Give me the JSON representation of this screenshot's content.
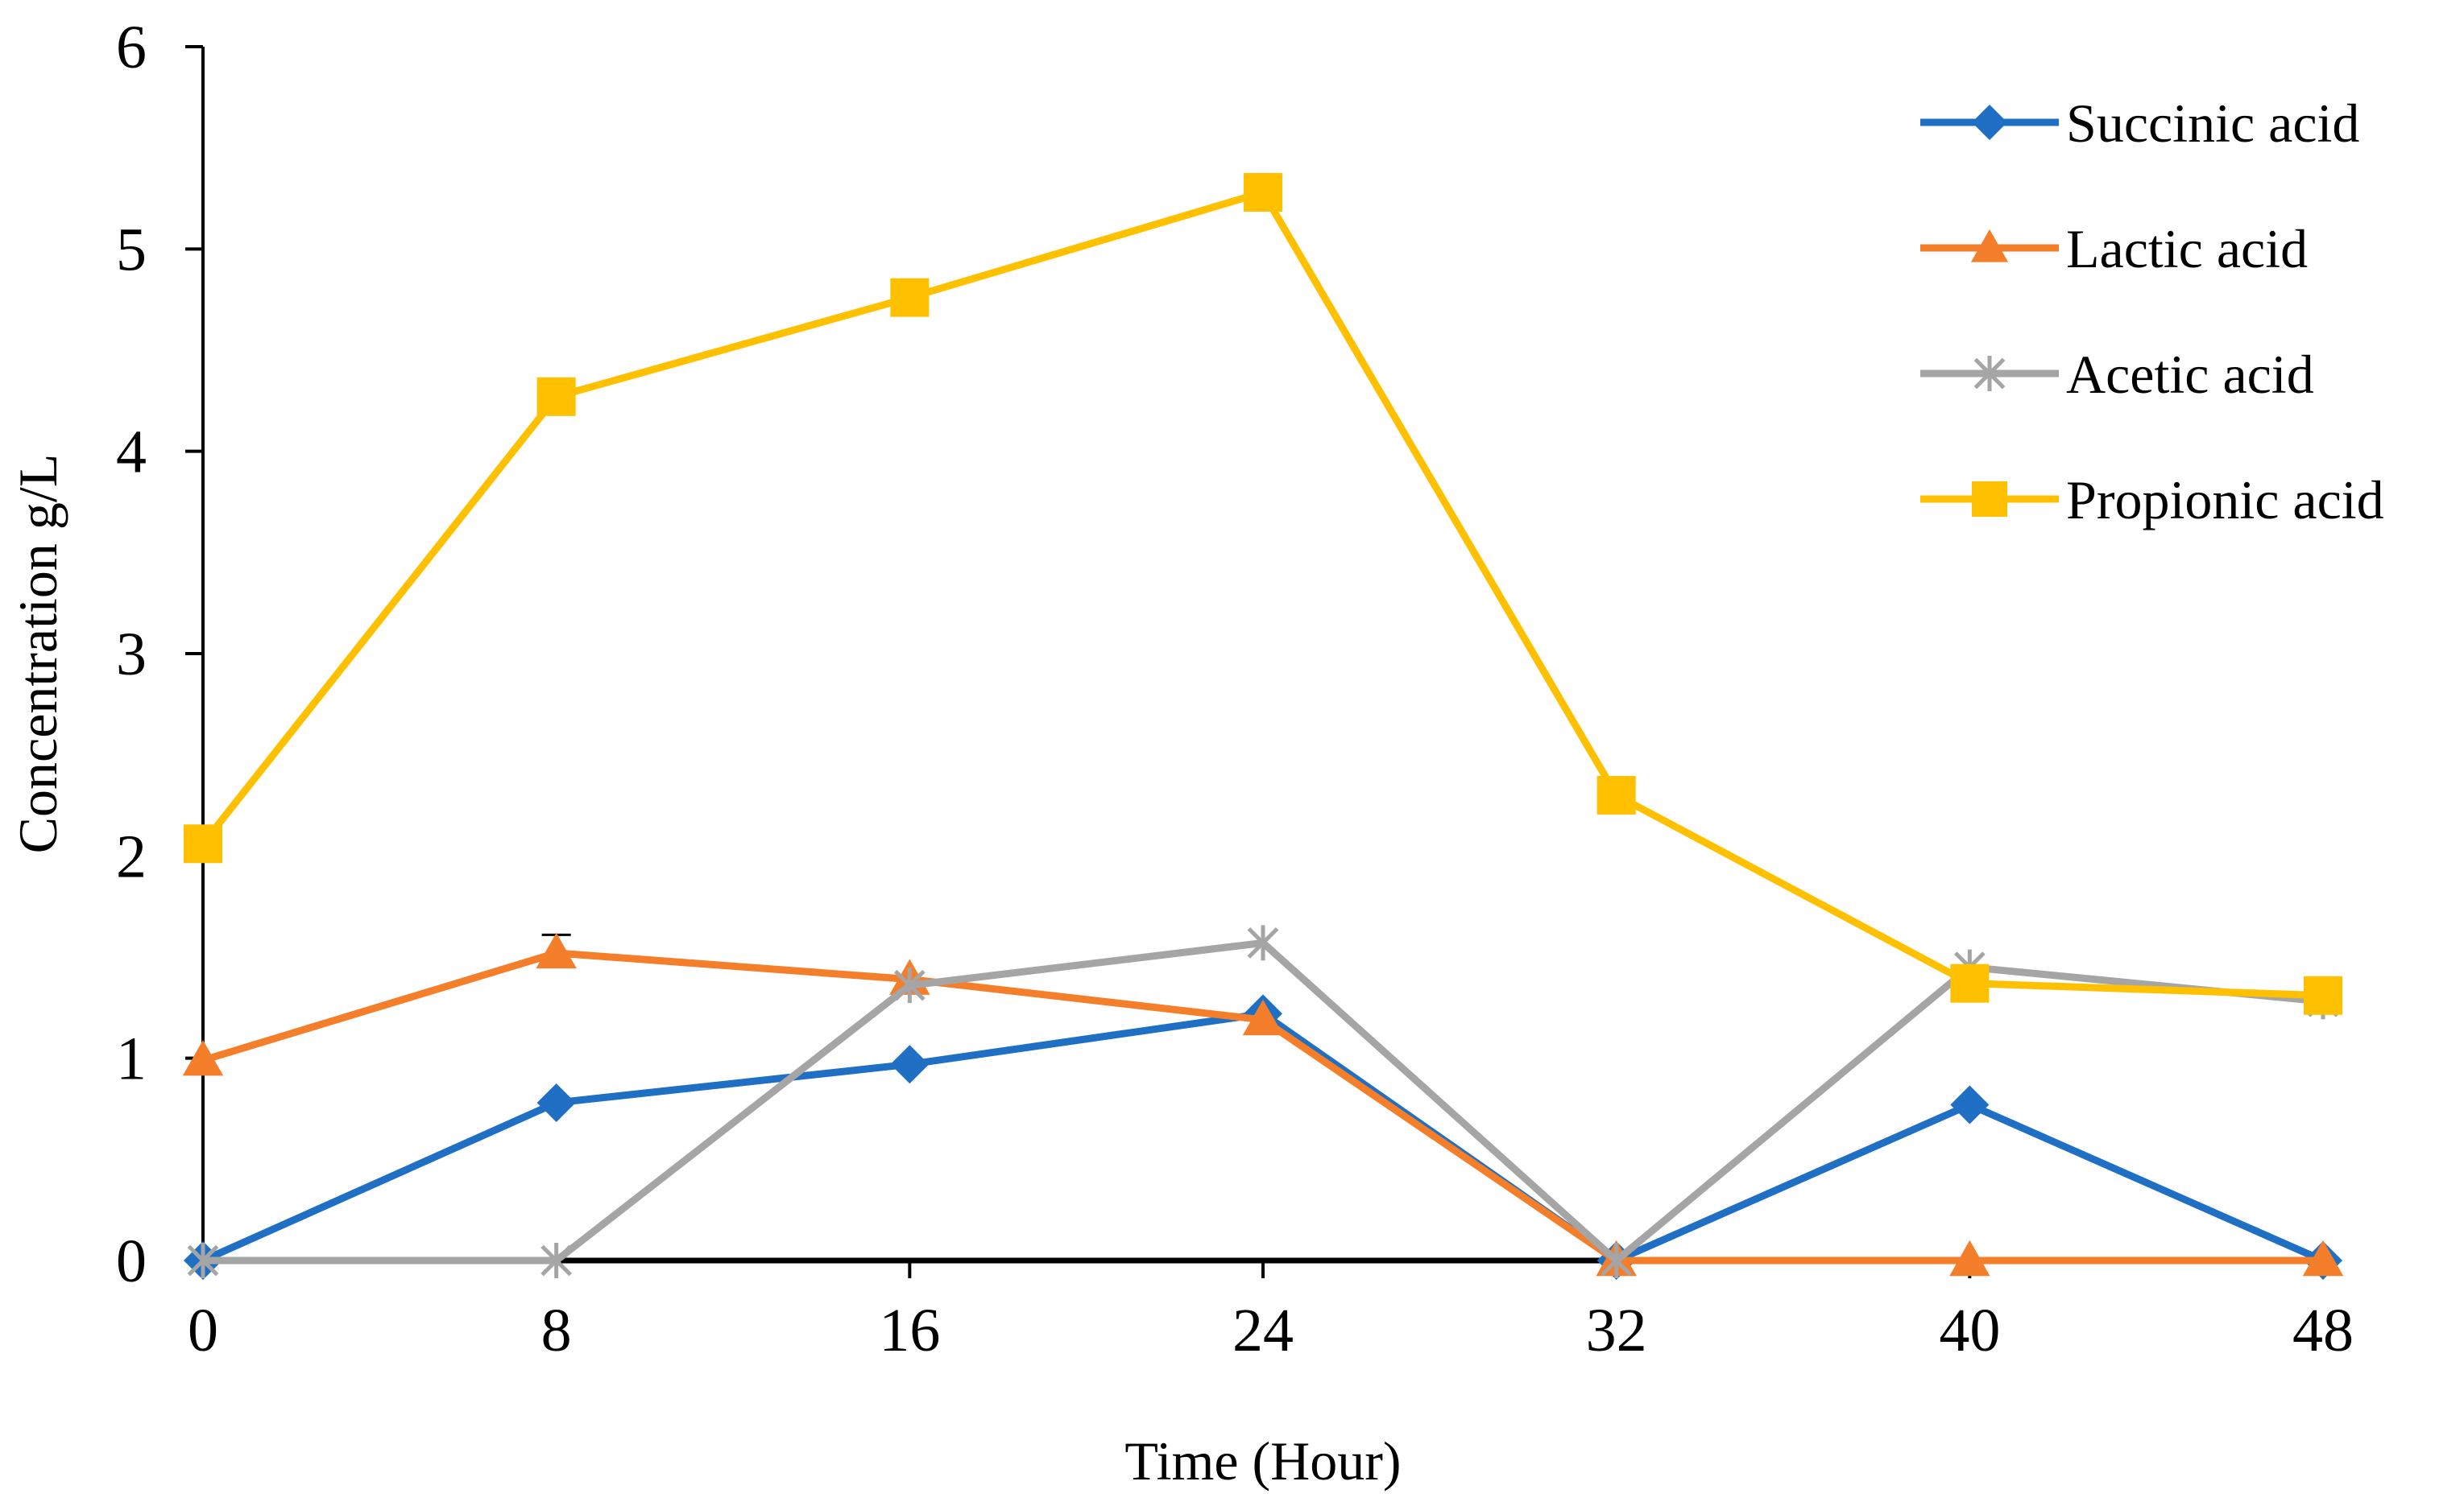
{
  "chart_data": {
    "type": "line",
    "title": "",
    "xlabel": "Time (Hour)",
    "ylabel": "Concentration g/L",
    "x": [
      0,
      8,
      16,
      24,
      32,
      40,
      48
    ],
    "x_ticks": [
      "0",
      "8",
      "16",
      "24",
      "32",
      "40",
      "48"
    ],
    "y_ticks": [
      "0",
      "1",
      "2",
      "3",
      "4",
      "5",
      "6"
    ],
    "xlim": [
      0,
      48
    ],
    "ylim": [
      0,
      6
    ],
    "grid": false,
    "legend_position": "top-right",
    "series": [
      {
        "name": "Succinic acid",
        "marker": "diamond",
        "color": "#1F6FC5",
        "values": [
          0,
          0.78,
          0.97,
          1.22,
          0,
          0.77,
          0
        ]
      },
      {
        "name": "Lactic acid",
        "marker": "triangle",
        "color": "#F47E2A",
        "values": [
          0.99,
          1.52,
          1.39,
          1.19,
          0,
          0,
          0
        ],
        "error": [
          0,
          0.09,
          0,
          0,
          0,
          0,
          0
        ]
      },
      {
        "name": "Acetic acid",
        "marker": "star",
        "color": "#A5A5A5",
        "values": [
          0,
          0,
          1.36,
          1.57,
          0,
          1.45,
          1.28
        ]
      },
      {
        "name": "Propionic acid",
        "marker": "square",
        "color": "#FFC000",
        "values": [
          2.06,
          4.27,
          4.76,
          5.28,
          2.3,
          1.37,
          1.31
        ]
      }
    ]
  }
}
